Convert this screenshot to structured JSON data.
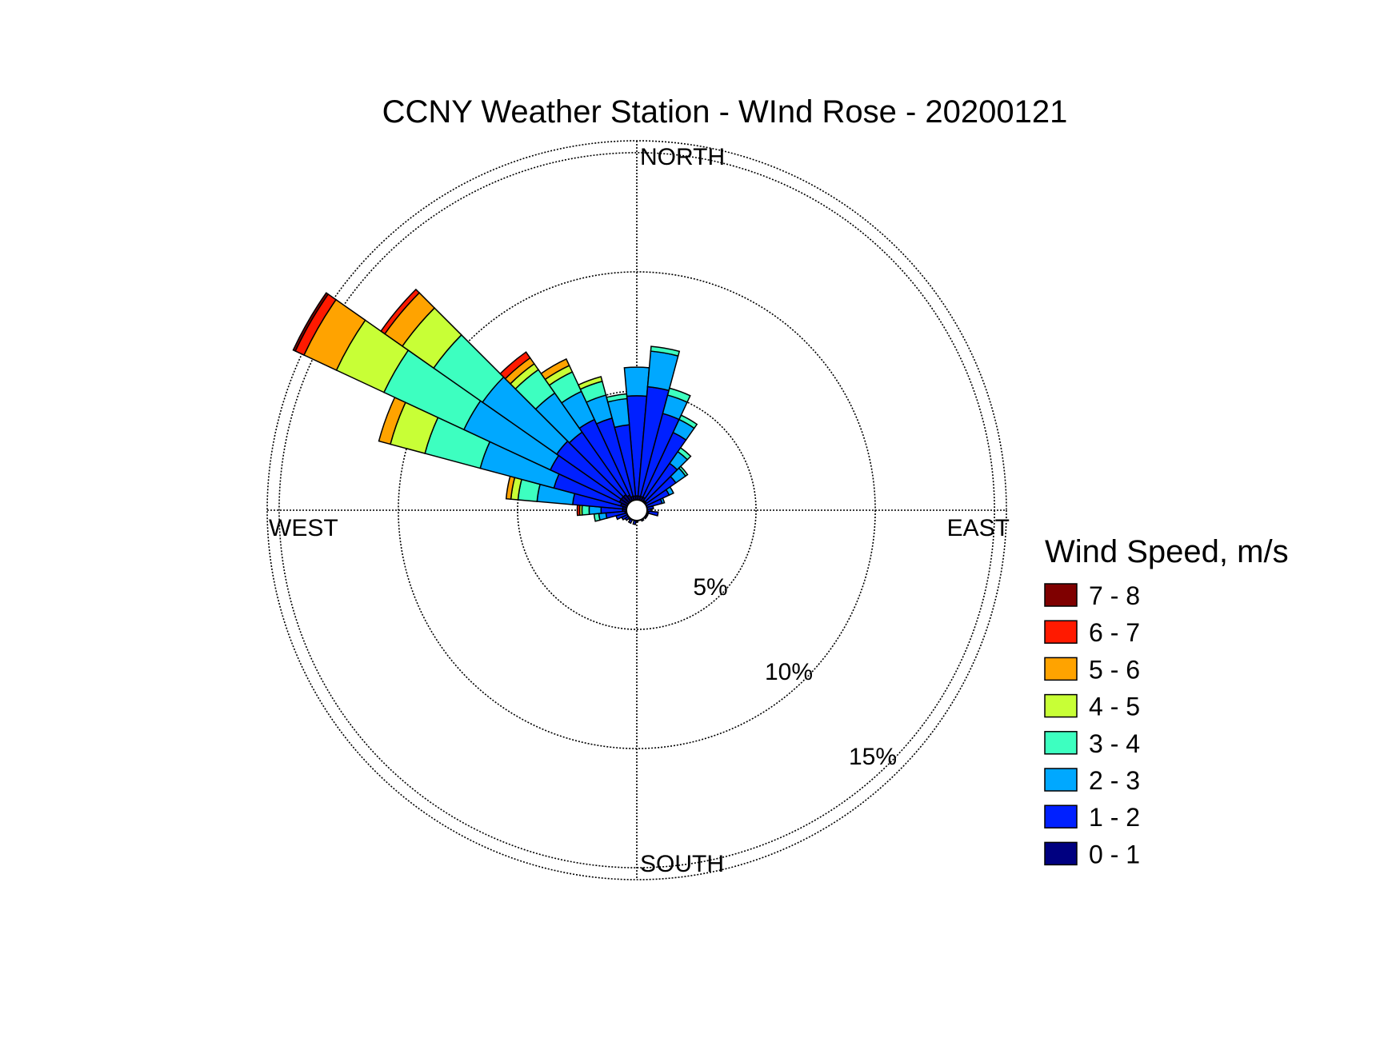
{
  "chart_data": {
    "type": "wind-rose",
    "title": "CCNY Weather Station - WInd Rose - 20200121",
    "direction_labels": {
      "north": "NORTH",
      "east": "EAST",
      "south": "SOUTH",
      "west": "WEST"
    },
    "rings": [
      {
        "value": 5,
        "label": "5%"
      },
      {
        "value": 10,
        "label": "10%"
      },
      {
        "value": 15,
        "label": "15%"
      }
    ],
    "r_max": 15.5,
    "legend": {
      "title": "Wind Speed, m/s",
      "items": [
        {
          "label": "7 - 8",
          "color": "#7f0000"
        },
        {
          "label": "6 - 7",
          "color": "#ff1a00"
        },
        {
          "label": "5 - 6",
          "color": "#ffa300"
        },
        {
          "label": "4 - 5",
          "color": "#c8ff36"
        },
        {
          "label": "3 - 4",
          "color": "#3dffc0"
        },
        {
          "label": "2 - 3",
          "color": "#00a8ff"
        },
        {
          "label": "1 - 2",
          "color": "#0020ff"
        },
        {
          "label": "0 - 1",
          "color": "#000080"
        }
      ]
    },
    "bin_width_deg": 10,
    "bins_order": [
      "0 - 1",
      "1 - 2",
      "2 - 3",
      "3 - 4",
      "4 - 5",
      "5 - 6",
      "6 - 7",
      "7 - 8"
    ],
    "sectors": [
      {
        "direction": 0,
        "counts": [
          0.6,
          4.2,
          1.2,
          0.0,
          0.0,
          0.0,
          0.0,
          0.0
        ]
      },
      {
        "direction": 10,
        "counts": [
          0.6,
          4.6,
          1.5,
          0.2,
          0.0,
          0.0,
          0.0,
          0.0
        ]
      },
      {
        "direction": 20,
        "counts": [
          0.6,
          3.6,
          0.8,
          0.3,
          0.0,
          0.0,
          0.0,
          0.0
        ]
      },
      {
        "direction": 30,
        "counts": [
          0.6,
          3.0,
          0.6,
          0.2,
          0.0,
          0.0,
          0.0,
          0.0
        ]
      },
      {
        "direction": 40,
        "counts": [
          0.5,
          1.9,
          0.6,
          0.2,
          0.0,
          0.0,
          0.0,
          0.0
        ]
      },
      {
        "direction": 50,
        "counts": [
          0.5,
          1.5,
          0.5,
          0.1,
          0.0,
          0.0,
          0.0,
          0.0
        ]
      },
      {
        "direction": 60,
        "counts": [
          0.4,
          1.1,
          0.2,
          0.0,
          0.0,
          0.0,
          0.0,
          0.0
        ]
      },
      {
        "direction": 70,
        "counts": [
          0.4,
          0.7,
          0.1,
          0.0,
          0.0,
          0.0,
          0.0,
          0.0
        ]
      },
      {
        "direction": 80,
        "counts": [
          0.4,
          0.3,
          0.0,
          0.0,
          0.0,
          0.0,
          0.0,
          0.0
        ]
      },
      {
        "direction": 90,
        "counts": [
          0.4,
          0.2,
          0.0,
          0.0,
          0.0,
          0.0,
          0.0,
          0.0
        ]
      },
      {
        "direction": 100,
        "counts": [
          0.5,
          0.4,
          0.0,
          0.0,
          0.0,
          0.0,
          0.0,
          0.0
        ]
      },
      {
        "direction": 110,
        "counts": [
          0.4,
          0.1,
          0.0,
          0.0,
          0.0,
          0.0,
          0.0,
          0.0
        ]
      },
      {
        "direction": 120,
        "counts": [
          0.4,
          0.1,
          0.0,
          0.0,
          0.0,
          0.0,
          0.0,
          0.0
        ]
      },
      {
        "direction": 130,
        "counts": [
          0.4,
          0.1,
          0.0,
          0.0,
          0.0,
          0.0,
          0.0,
          0.0
        ]
      },
      {
        "direction": 140,
        "counts": [
          0.4,
          0.0,
          0.0,
          0.0,
          0.0,
          0.0,
          0.0,
          0.0
        ]
      },
      {
        "direction": 150,
        "counts": [
          0.4,
          0.1,
          0.0,
          0.0,
          0.0,
          0.0,
          0.0,
          0.0
        ]
      },
      {
        "direction": 160,
        "counts": [
          0.4,
          0.0,
          0.0,
          0.0,
          0.0,
          0.0,
          0.0,
          0.0
        ]
      },
      {
        "direction": 170,
        "counts": [
          0.4,
          0.0,
          0.0,
          0.0,
          0.0,
          0.0,
          0.0,
          0.0
        ]
      },
      {
        "direction": 180,
        "counts": [
          0.4,
          0.1,
          0.0,
          0.0,
          0.0,
          0.0,
          0.0,
          0.0
        ]
      },
      {
        "direction": 190,
        "counts": [
          0.4,
          0.2,
          0.0,
          0.0,
          0.0,
          0.0,
          0.0,
          0.0
        ]
      },
      {
        "direction": 200,
        "counts": [
          0.4,
          0.0,
          0.0,
          0.0,
          0.0,
          0.0,
          0.0,
          0.0
        ]
      },
      {
        "direction": 210,
        "counts": [
          0.4,
          0.2,
          0.0,
          0.0,
          0.0,
          0.0,
          0.0,
          0.0
        ]
      },
      {
        "direction": 220,
        "counts": [
          0.4,
          0.1,
          0.0,
          0.0,
          0.0,
          0.0,
          0.0,
          0.0
        ]
      },
      {
        "direction": 230,
        "counts": [
          0.4,
          0.2,
          0.0,
          0.0,
          0.0,
          0.0,
          0.0,
          0.0
        ]
      },
      {
        "direction": 240,
        "counts": [
          0.4,
          0.3,
          0.0,
          0.0,
          0.0,
          0.0,
          0.0,
          0.0
        ]
      },
      {
        "direction": 250,
        "counts": [
          0.4,
          0.5,
          0.0,
          0.0,
          0.0,
          0.0,
          0.0,
          0.0
        ]
      },
      {
        "direction": 260,
        "counts": [
          0.5,
          0.8,
          0.3,
          0.2,
          0.0,
          0.0,
          0.0,
          0.0
        ]
      },
      {
        "direction": 270,
        "counts": [
          0.6,
          0.9,
          0.5,
          0.3,
          0.1,
          0.0,
          0.1,
          0.0
        ]
      },
      {
        "direction": 280,
        "counts": [
          0.6,
          2.1,
          1.5,
          0.8,
          0.3,
          0.2,
          0.0,
          0.0
        ]
      },
      {
        "direction": 290,
        "counts": [
          0.7,
          2.9,
          3.2,
          2.4,
          1.5,
          0.5,
          0.0,
          0.0
        ]
      },
      {
        "direction": 300,
        "counts": [
          0.8,
          3.2,
          4.0,
          3.7,
          2.2,
          1.5,
          0.4,
          0.1
        ]
      },
      {
        "direction": 310,
        "counts": [
          0.8,
          3.3,
          3.8,
          2.5,
          1.6,
          0.9,
          0.2,
          0.0
        ]
      },
      {
        "direction": 320,
        "counts": [
          0.8,
          3.2,
          2.0,
          1.2,
          0.3,
          0.3,
          0.3,
          0.0
        ]
      },
      {
        "direction": 330,
        "counts": [
          0.7,
          3.5,
          1.3,
          0.9,
          0.3,
          0.3,
          0.0,
          0.0
        ]
      },
      {
        "direction": 340,
        "counts": [
          0.6,
          3.4,
          1.0,
          0.6,
          0.2,
          0.0,
          0.0,
          0.0
        ]
      },
      {
        "direction": 350,
        "counts": [
          0.6,
          3.0,
          1.1,
          0.2,
          0.0,
          0.0,
          0.0,
          0.0
        ]
      }
    ]
  }
}
